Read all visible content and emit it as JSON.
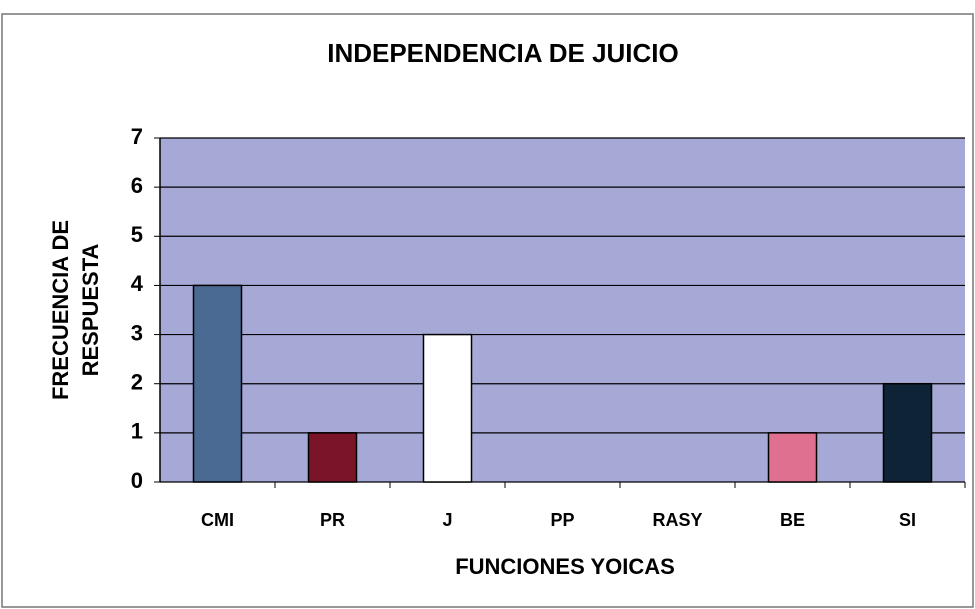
{
  "chart_data": {
    "type": "bar",
    "title": "INDEPENDENCIA DE JUICIO",
    "xlabel": "FUNCIONES YOICAS",
    "ylabel": [
      "FRECUENCIA DE",
      "RESPUESTA"
    ],
    "categories": [
      "CMI",
      "PR",
      "J",
      "PP",
      "RASY",
      "BE",
      "SI"
    ],
    "values": [
      4,
      1,
      3,
      0,
      0,
      1,
      2
    ],
    "colors": [
      "#4a6a94",
      "#7a1428",
      "#ffffff",
      null,
      null,
      "#e07090",
      "#0e2436"
    ],
    "ylim": [
      0,
      7
    ],
    "yticks": [
      0,
      1,
      2,
      3,
      4,
      5,
      6,
      7
    ],
    "grid": true
  }
}
